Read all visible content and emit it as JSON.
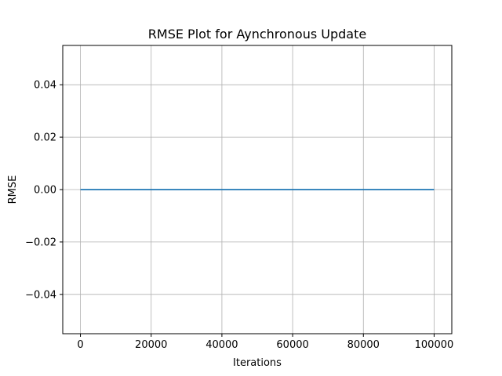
{
  "chart_data": {
    "type": "line",
    "title": "RMSE Plot for Aynchronous Update",
    "xlabel": "Iterations",
    "ylabel": "RMSE",
    "xlim": [
      -5000,
      105000
    ],
    "ylim": [
      -0.055,
      0.055
    ],
    "x_ticks": [
      0,
      20000,
      40000,
      60000,
      80000,
      100000
    ],
    "x_tick_labels": [
      "0",
      "20000",
      "40000",
      "60000",
      "80000",
      "100000"
    ],
    "y_ticks": [
      -0.04,
      -0.02,
      0.0,
      0.02,
      0.04
    ],
    "y_tick_labels": [
      "−0.04",
      "−0.02",
      "0.00",
      "0.02",
      "0.04"
    ],
    "grid": true,
    "series": [
      {
        "color": "#1f77b4",
        "x": [
          0,
          100000
        ],
        "y": [
          0.0,
          0.0
        ]
      }
    ]
  }
}
